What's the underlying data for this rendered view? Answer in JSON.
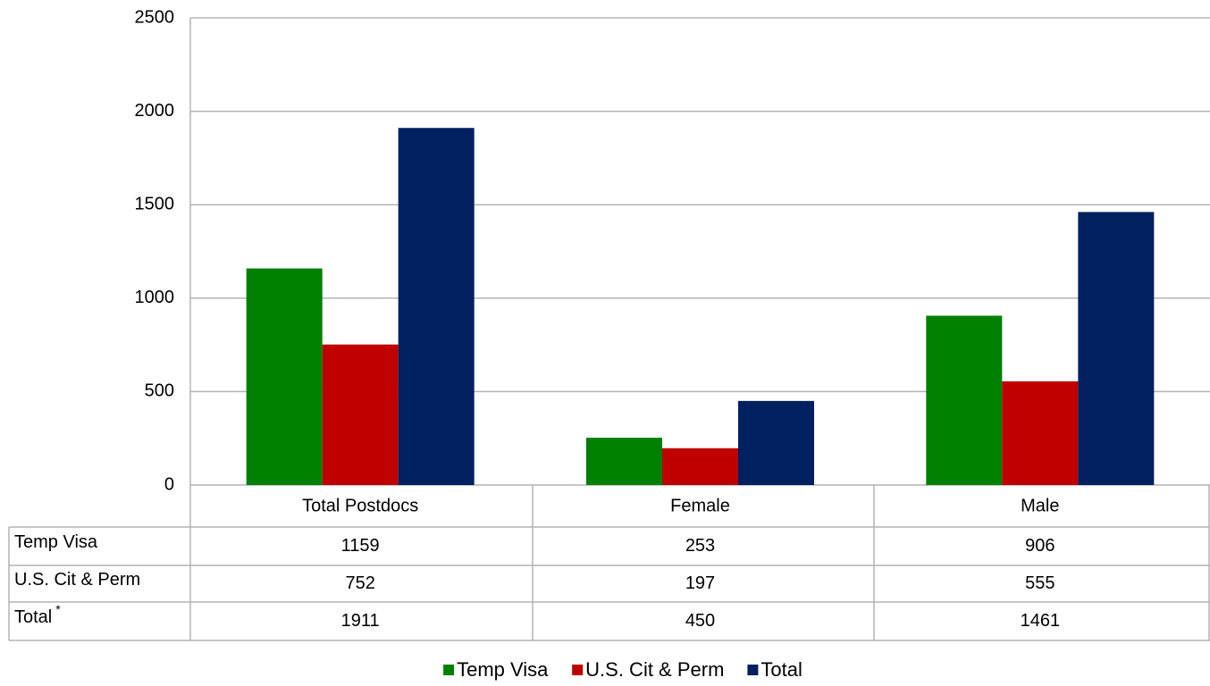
{
  "chart_data": {
    "type": "bar",
    "categories": [
      "Total Postdocs",
      "Female",
      "Male"
    ],
    "series": [
      {
        "name": "Temp Visa",
        "color": "#008000",
        "values": [
          1159,
          253,
          906
        ]
      },
      {
        "name": "U.S. Cit & Perm",
        "color": "#c00000",
        "values": [
          752,
          197,
          555
        ]
      },
      {
        "name": "Total",
        "color": "#002060",
        "values": [
          1911,
          450,
          1461
        ]
      }
    ],
    "ylim": [
      0,
      2500
    ],
    "yticks": [
      0,
      500,
      1000,
      1500,
      2000,
      2500
    ],
    "grid": true,
    "legend": "bottom",
    "data_table": true,
    "table_footnote_mark": "*"
  }
}
